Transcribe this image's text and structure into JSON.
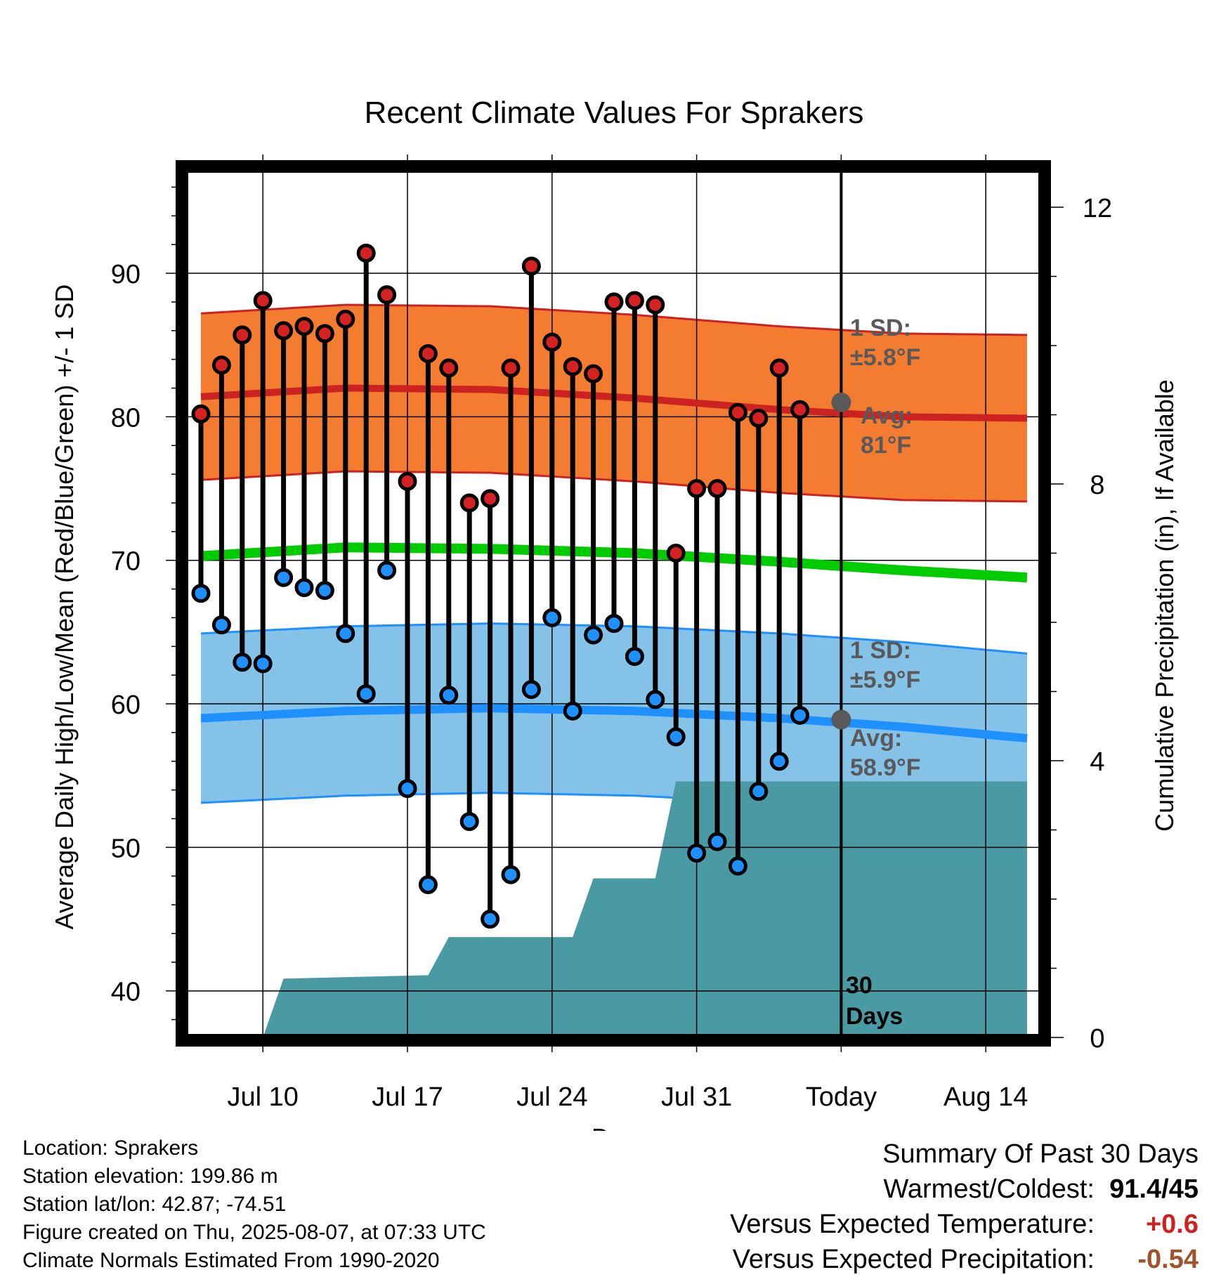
{
  "title": "Recent Climate Values For Sprakers",
  "footer": {
    "location": "Location: Sprakers",
    "elevation": "Station elevation: 199.86 m",
    "latlon": "Station lat/lon: 42.87; -74.51",
    "created": "Figure created on Thu, 2025-08-07, at 07:33 UTC",
    "normals": "Climate Normals Estimated From 1990-2020"
  },
  "summary": {
    "heading": "Summary Of Past 30 Days",
    "rows": [
      {
        "label": "Warmest/Coldest:",
        "value": "91.4/45",
        "color": "#000000"
      },
      {
        "label": "Versus Expected Temperature:",
        "value": "+0.6",
        "color": "#cc2222"
      },
      {
        "label": "Versus Expected Precipitation:",
        "value": "-0.54",
        "color": "#a0522d"
      }
    ]
  },
  "chart_data": {
    "type": "line",
    "x_unit": "day",
    "x_range": [
      "2025-07-07",
      "2025-08-16"
    ],
    "x_ticks": [
      {
        "date": "2025-07-10",
        "label": "Jul 10"
      },
      {
        "date": "2025-07-17",
        "label": "Jul 17"
      },
      {
        "date": "2025-07-24",
        "label": "Jul 24"
      },
      {
        "date": "2025-07-31",
        "label": "Jul 31"
      },
      {
        "date": "2025-08-07",
        "label": "Today"
      },
      {
        "date": "2025-08-14",
        "label": "Aug 14"
      }
    ],
    "xlabel": "Day",
    "ylabel": "Average Daily High/Low/Mean (Red/Blue/Green) +/- 1 SD",
    "ylim": [
      37,
      97
    ],
    "yticks": [
      40,
      50,
      60,
      70,
      80,
      90
    ],
    "y2label": "Cumulative Precipitation (in), If Available",
    "y2lim": [
      0,
      20
    ],
    "y2ticks": [
      0,
      4,
      8,
      12
    ],
    "grid": true,
    "today_date": "2025-08-07",
    "today_label": "30\nDays",
    "observed": [
      {
        "date": "2025-07-07",
        "high": 80.2,
        "low": 67.7
      },
      {
        "date": "2025-07-08",
        "high": 83.6,
        "low": 65.5
      },
      {
        "date": "2025-07-09",
        "high": 85.7,
        "low": 62.9
      },
      {
        "date": "2025-07-10",
        "high": 88.1,
        "low": 62.8
      },
      {
        "date": "2025-07-11",
        "high": 86.0,
        "low": 68.8
      },
      {
        "date": "2025-07-12",
        "high": 86.3,
        "low": 68.1
      },
      {
        "date": "2025-07-13",
        "high": 85.8,
        "low": 67.9
      },
      {
        "date": "2025-07-14",
        "high": 86.8,
        "low": 64.9
      },
      {
        "date": "2025-07-15",
        "high": 91.4,
        "low": 60.7
      },
      {
        "date": "2025-07-16",
        "high": 88.5,
        "low": 69.3
      },
      {
        "date": "2025-07-17",
        "high": 75.5,
        "low": 54.1
      },
      {
        "date": "2025-07-18",
        "high": 84.4,
        "low": 47.4
      },
      {
        "date": "2025-07-19",
        "high": 83.4,
        "low": 60.6
      },
      {
        "date": "2025-07-20",
        "high": 74.0,
        "low": 51.8
      },
      {
        "date": "2025-07-21",
        "high": 74.3,
        "low": 45.0
      },
      {
        "date": "2025-07-22",
        "high": 83.4,
        "low": 48.1
      },
      {
        "date": "2025-07-23",
        "high": 90.5,
        "low": 61.0
      },
      {
        "date": "2025-07-24",
        "high": 85.2,
        "low": 66.0
      },
      {
        "date": "2025-07-25",
        "high": 83.5,
        "low": 59.5
      },
      {
        "date": "2025-07-26",
        "high": 83.0,
        "low": 64.8
      },
      {
        "date": "2025-07-27",
        "high": 88.0,
        "low": 65.6
      },
      {
        "date": "2025-07-28",
        "high": 88.1,
        "low": 63.3
      },
      {
        "date": "2025-07-29",
        "high": 87.8,
        "low": 60.3
      },
      {
        "date": "2025-07-30",
        "high": 70.5,
        "low": 57.7
      },
      {
        "date": "2025-07-31",
        "high": 75.0,
        "low": 49.6
      },
      {
        "date": "2025-08-01",
        "high": 75.0,
        "low": 50.4
      },
      {
        "date": "2025-08-02",
        "high": 80.3,
        "low": 48.7
      },
      {
        "date": "2025-08-03",
        "high": 79.9,
        "low": 53.9
      },
      {
        "date": "2025-08-04",
        "high": 83.4,
        "low": 56.0
      },
      {
        "date": "2025-08-05",
        "high": 80.5,
        "low": 59.2
      }
    ],
    "normal_high": {
      "color": "#cc2222",
      "band_color": "#f47c30",
      "sd": 5.8,
      "today_avg": 81,
      "points": [
        [
          "2025-07-07",
          81.4
        ],
        [
          "2025-07-14",
          82.0
        ],
        [
          "2025-07-21",
          81.9
        ],
        [
          "2025-07-28",
          81.3
        ],
        [
          "2025-08-04",
          80.5
        ],
        [
          "2025-08-10",
          80.0
        ],
        [
          "2025-08-16",
          79.9
        ]
      ],
      "sd_label": "1 SD:\n±5.8°F",
      "avg_label": "Avg:\n81°F"
    },
    "normal_low": {
      "color": "#1e90ff",
      "band_color": "#84c2e8",
      "sd": 5.9,
      "today_avg": 58.9,
      "points": [
        [
          "2025-07-07",
          59.0
        ],
        [
          "2025-07-14",
          59.5
        ],
        [
          "2025-07-21",
          59.7
        ],
        [
          "2025-07-28",
          59.5
        ],
        [
          "2025-08-04",
          59.0
        ],
        [
          "2025-08-10",
          58.4
        ],
        [
          "2025-08-16",
          57.6
        ]
      ],
      "sd_label": "1 SD:\n±5.9°F",
      "avg_label": "Avg:\n58.9°F"
    },
    "normal_mean": {
      "color": "#00cc00",
      "points": [
        [
          "2025-07-07",
          70.3
        ],
        [
          "2025-07-14",
          70.9
        ],
        [
          "2025-07-21",
          70.8
        ],
        [
          "2025-07-28",
          70.5
        ],
        [
          "2025-08-04",
          69.9
        ],
        [
          "2025-08-10",
          69.3
        ],
        [
          "2025-08-16",
          68.8
        ]
      ]
    },
    "precipitation": {
      "color": "#4a9aa4",
      "points": [
        [
          "2025-07-10",
          0
        ],
        [
          "2025-07-11",
          0.85
        ],
        [
          "2025-07-18",
          0.9
        ],
        [
          "2025-07-19",
          1.45
        ],
        [
          "2025-07-25",
          1.45
        ],
        [
          "2025-07-26",
          2.3
        ],
        [
          "2025-07-29",
          2.3
        ],
        [
          "2025-07-30",
          3.7
        ],
        [
          "2025-08-16",
          3.7
        ]
      ]
    }
  }
}
